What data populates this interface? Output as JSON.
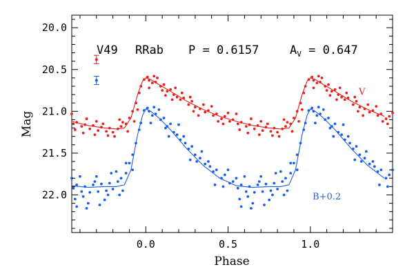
{
  "chart_data": {
    "type": "scatter",
    "xlabel": "Phase",
    "ylabel": "Mag",
    "xlim": [
      -0.45,
      1.5
    ],
    "ylim": [
      22.45,
      19.85
    ],
    "y_inverted": true,
    "grid": false,
    "x_ticks": [
      "0.0",
      "0.5",
      "1.0"
    ],
    "x_tick_values": [
      0.0,
      0.5,
      1.0
    ],
    "y_ticks": [
      "20.0",
      "20.5",
      "21.0",
      "21.5",
      "22.0"
    ],
    "y_tick_values": [
      20.0,
      20.5,
      21.0,
      21.5,
      22.0
    ],
    "header": {
      "star": "V49",
      "type": "RRab",
      "period": "P = 0.6157",
      "amp_base": "A",
      "amp_sub": "V",
      "amp_val": " = 0.647"
    },
    "series": [
      {
        "name": "V",
        "color": "#e8201c",
        "offset_label": "V",
        "errorbar": {
          "y": 20.38,
          "err": 0.05
        },
        "template": [
          [
            0.0,
            20.6
          ],
          [
            0.03,
            20.62
          ],
          [
            0.08,
            20.68
          ],
          [
            0.15,
            20.76
          ],
          [
            0.25,
            20.88
          ],
          [
            0.35,
            20.98
          ],
          [
            0.45,
            21.06
          ],
          [
            0.55,
            21.12
          ],
          [
            0.65,
            21.17
          ],
          [
            0.75,
            21.2
          ],
          [
            0.82,
            21.21
          ],
          [
            0.87,
            21.2
          ],
          [
            0.91,
            21.08
          ],
          [
            0.95,
            20.8
          ],
          [
            0.98,
            20.64
          ],
          [
            1.0,
            20.6
          ]
        ],
        "points": [
          [
            0.99,
            20.62
          ],
          [
            1.01,
            20.59
          ],
          [
            0.02,
            20.63
          ],
          [
            0.04,
            20.66
          ],
          [
            0.06,
            20.65
          ],
          [
            0.09,
            20.7
          ],
          [
            0.11,
            20.68
          ],
          [
            0.13,
            20.76
          ],
          [
            0.15,
            20.74
          ],
          [
            0.17,
            20.8
          ],
          [
            0.19,
            20.83
          ],
          [
            0.21,
            20.86
          ],
          [
            0.23,
            20.84
          ],
          [
            0.26,
            20.92
          ],
          [
            0.28,
            20.88
          ],
          [
            0.3,
            20.95
          ],
          [
            0.33,
            20.97
          ],
          [
            0.36,
            21.01
          ],
          [
            0.38,
            20.99
          ],
          [
            0.41,
            21.05
          ],
          [
            0.43,
            21.03
          ],
          [
            0.46,
            21.09
          ],
          [
            0.48,
            21.06
          ],
          [
            0.51,
            21.12
          ],
          [
            0.53,
            21.1
          ],
          [
            0.56,
            21.15
          ],
          [
            0.58,
            21.13
          ],
          [
            0.61,
            21.18
          ],
          [
            0.63,
            21.16
          ],
          [
            0.66,
            21.21
          ],
          [
            0.68,
            21.17
          ],
          [
            0.71,
            21.23
          ],
          [
            0.73,
            21.19
          ],
          [
            0.76,
            21.24
          ],
          [
            0.78,
            21.2
          ],
          [
            0.8,
            21.25
          ],
          [
            0.83,
            21.21
          ],
          [
            0.85,
            21.18
          ],
          [
            0.88,
            21.15
          ],
          [
            0.9,
            21.08
          ],
          [
            0.92,
            21.0
          ],
          [
            0.94,
            20.9
          ],
          [
            0.96,
            20.78
          ],
          [
            0.97,
            20.7
          ],
          [
            0.02,
            20.72
          ],
          [
            0.07,
            20.6
          ],
          [
            0.12,
            20.81
          ],
          [
            0.18,
            20.72
          ],
          [
            0.27,
            20.83
          ],
          [
            0.32,
            21.05
          ],
          [
            0.4,
            20.94
          ],
          [
            0.47,
            21.15
          ],
          [
            0.55,
            21.03
          ],
          [
            0.62,
            21.26
          ],
          [
            0.7,
            21.12
          ],
          [
            0.77,
            21.29
          ],
          [
            0.84,
            21.1
          ],
          [
            0.89,
            21.24
          ],
          [
            0.93,
            21.12
          ],
          [
            0.95,
            20.98
          ],
          [
            0.05,
            20.58
          ],
          [
            0.1,
            20.75
          ],
          [
            0.16,
            20.86
          ],
          [
            0.22,
            20.78
          ],
          [
            0.29,
            21.0
          ],
          [
            0.35,
            20.92
          ],
          [
            0.44,
            21.12
          ],
          [
            0.5,
            21.02
          ],
          [
            0.57,
            21.22
          ],
          [
            0.64,
            21.09
          ],
          [
            0.69,
            21.28
          ],
          [
            0.74,
            21.15
          ],
          [
            0.81,
            21.3
          ],
          [
            0.86,
            21.13
          ]
        ]
      },
      {
        "name": "B+0.2",
        "color": "#1a5fe6",
        "offset_label": "B+0.2",
        "errorbar": {
          "y": 20.63,
          "err": 0.05
        },
        "template": [
          [
            0.0,
            20.97
          ],
          [
            0.03,
            21.0
          ],
          [
            0.08,
            21.08
          ],
          [
            0.15,
            21.22
          ],
          [
            0.25,
            21.45
          ],
          [
            0.35,
            21.65
          ],
          [
            0.45,
            21.8
          ],
          [
            0.55,
            21.89
          ],
          [
            0.65,
            21.91
          ],
          [
            0.75,
            21.9
          ],
          [
            0.82,
            21.9
          ],
          [
            0.87,
            21.88
          ],
          [
            0.91,
            21.7
          ],
          [
            0.95,
            21.28
          ],
          [
            0.98,
            21.05
          ],
          [
            1.0,
            20.97
          ]
        ],
        "points": [
          [
            0.99,
            20.99
          ],
          [
            1.01,
            20.96
          ],
          [
            0.02,
            21.0
          ],
          [
            0.04,
            21.05
          ],
          [
            0.06,
            21.03
          ],
          [
            0.09,
            21.1
          ],
          [
            0.11,
            21.08
          ],
          [
            0.13,
            21.18
          ],
          [
            0.15,
            21.15
          ],
          [
            0.17,
            21.25
          ],
          [
            0.19,
            21.28
          ],
          [
            0.21,
            21.34
          ],
          [
            0.23,
            21.3
          ],
          [
            0.26,
            21.45
          ],
          [
            0.28,
            21.42
          ],
          [
            0.3,
            21.52
          ],
          [
            0.33,
            21.56
          ],
          [
            0.36,
            21.63
          ],
          [
            0.38,
            21.6
          ],
          [
            0.41,
            21.72
          ],
          [
            0.43,
            21.7
          ],
          [
            0.46,
            21.8
          ],
          [
            0.48,
            21.76
          ],
          [
            0.51,
            21.86
          ],
          [
            0.53,
            21.84
          ],
          [
            0.56,
            21.92
          ],
          [
            0.58,
            21.88
          ],
          [
            0.61,
            21.96
          ],
          [
            0.63,
            21.9
          ],
          [
            0.66,
            21.97
          ],
          [
            0.68,
            21.88
          ],
          [
            0.71,
            21.96
          ],
          [
            0.73,
            21.87
          ],
          [
            0.76,
            21.95
          ],
          [
            0.78,
            21.86
          ],
          [
            0.8,
            21.93
          ],
          [
            0.83,
            21.84
          ],
          [
            0.85,
            21.8
          ],
          [
            0.88,
            21.74
          ],
          [
            0.9,
            21.62
          ],
          [
            0.92,
            21.52
          ],
          [
            0.94,
            21.38
          ],
          [
            0.96,
            21.22
          ],
          [
            0.97,
            21.14
          ],
          [
            0.03,
            21.14
          ],
          [
            0.08,
            20.98
          ],
          [
            0.14,
            21.3
          ],
          [
            0.2,
            21.16
          ],
          [
            0.27,
            21.58
          ],
          [
            0.34,
            21.48
          ],
          [
            0.42,
            21.88
          ],
          [
            0.5,
            21.7
          ],
          [
            0.57,
            22.05
          ],
          [
            0.6,
            21.78
          ],
          [
            0.65,
            22.1
          ],
          [
            0.7,
            21.78
          ],
          [
            0.75,
            22.06
          ],
          [
            0.79,
            21.74
          ],
          [
            0.84,
            22.0
          ],
          [
            0.88,
            21.62
          ],
          [
            0.92,
            21.7
          ],
          [
            0.05,
            20.95
          ],
          [
            0.12,
            21.2
          ],
          [
            0.24,
            21.38
          ],
          [
            0.31,
            21.6
          ],
          [
            0.39,
            21.66
          ],
          [
            0.47,
            21.9
          ],
          [
            0.55,
            21.8
          ],
          [
            0.62,
            22.02
          ],
          [
            0.69,
            21.84
          ],
          [
            0.77,
            22.0
          ],
          [
            0.82,
            21.72
          ],
          [
            0.86,
            21.95
          ],
          [
            0.64,
            22.16
          ],
          [
            0.72,
            22.12
          ],
          [
            0.58,
            22.14
          ]
        ]
      }
    ]
  }
}
